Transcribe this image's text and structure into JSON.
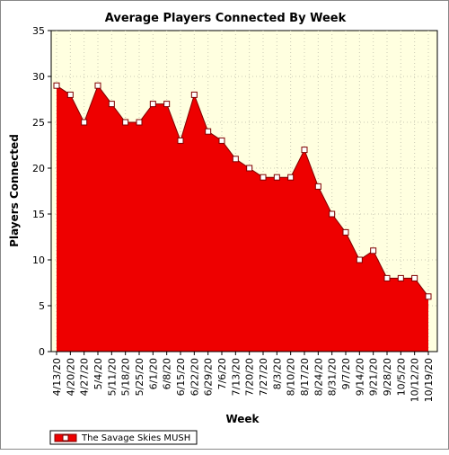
{
  "chart_data": {
    "type": "area",
    "title": "Average Players Connected By Week",
    "xlabel": "Week",
    "ylabel": "Players Connected",
    "ylim": [
      0,
      35
    ],
    "yticks": [
      0,
      5,
      10,
      15,
      20,
      25,
      30,
      35
    ],
    "grid": true,
    "legend_position": "bottom-left",
    "categories": [
      "4/13/20",
      "4/20/20",
      "4/27/20",
      "5/4/20",
      "5/11/20",
      "5/18/20",
      "5/25/20",
      "6/1/20",
      "6/8/20",
      "6/15/20",
      "6/22/20",
      "6/29/20",
      "7/6/20",
      "7/13/20",
      "7/20/20",
      "7/27/20",
      "8/3/20",
      "8/10/20",
      "8/17/20",
      "8/24/20",
      "8/31/20",
      "9/7/20",
      "9/14/20",
      "9/21/20",
      "9/28/20",
      "10/5/20",
      "10/12/20",
      "10/19/20"
    ],
    "series": [
      {
        "name": "The Savage Skies MUSH",
        "values": [
          29,
          28,
          25,
          29,
          27,
          25,
          25,
          27,
          27,
          23,
          28,
          24,
          23,
          21,
          20,
          19,
          19,
          19,
          22,
          18,
          15,
          13,
          10,
          11,
          8,
          8,
          8,
          6
        ]
      }
    ],
    "colors": {
      "area_fill": "#ee0000",
      "area_stroke": "#800000",
      "plot_background": "#ffffe0",
      "marker_fill": "#ffffff"
    }
  }
}
